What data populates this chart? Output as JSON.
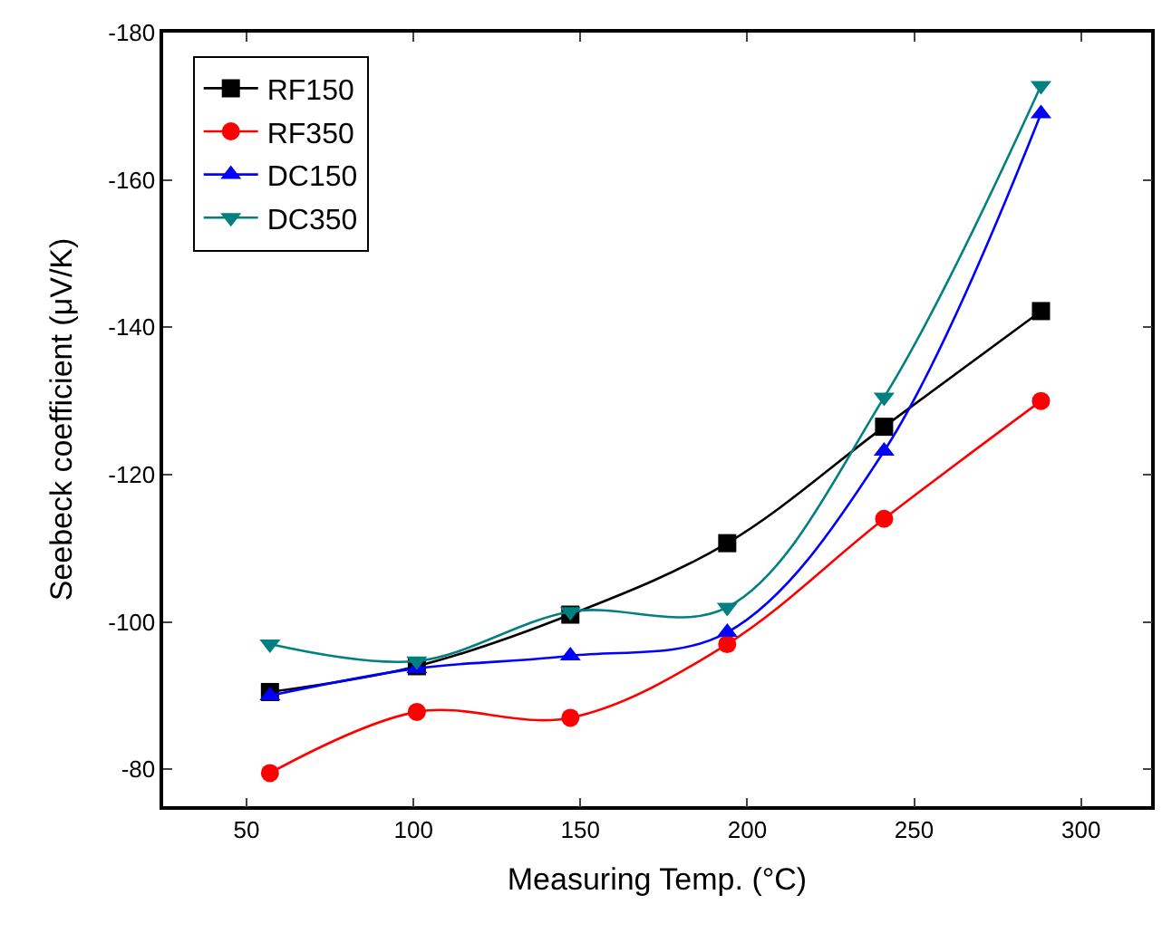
{
  "chart_data": {
    "type": "line",
    "xlabel": "Measuring Temp. (°C)",
    "ylabel": "Seebeck coefficient (μV/K)",
    "x": [
      57,
      101,
      147,
      194,
      241,
      288
    ],
    "series": [
      {
        "name": "RF150",
        "color": "#000000",
        "marker": "square",
        "values": [
          -90.5,
          -94,
          -101,
          -110.7,
          -126.5,
          -142.2
        ]
      },
      {
        "name": "RF350",
        "color": "#ff0000",
        "marker": "circle",
        "values": [
          -79.5,
          -87.8,
          -87,
          -97,
          -114,
          -130
        ]
      },
      {
        "name": "DC150",
        "color": "#0000ff",
        "marker": "triangle",
        "values": [
          -90,
          -93.7,
          -95.4,
          -98.6,
          -123.2,
          -169
        ]
      },
      {
        "name": "DC350",
        "color": "#008080",
        "marker": "triangle-down",
        "values": [
          -97,
          -94.7,
          -101.4,
          -102,
          -130.5,
          -172.8
        ]
      }
    ],
    "xlim": [
      25,
      321
    ],
    "xticks": [
      50,
      100,
      150,
      200,
      250,
      300
    ],
    "ylim": [
      -75,
      -180
    ],
    "yticks": [
      -180,
      -160,
      -140,
      -120,
      -100,
      -80
    ],
    "legend": "top left",
    "line_style": "solid"
  }
}
